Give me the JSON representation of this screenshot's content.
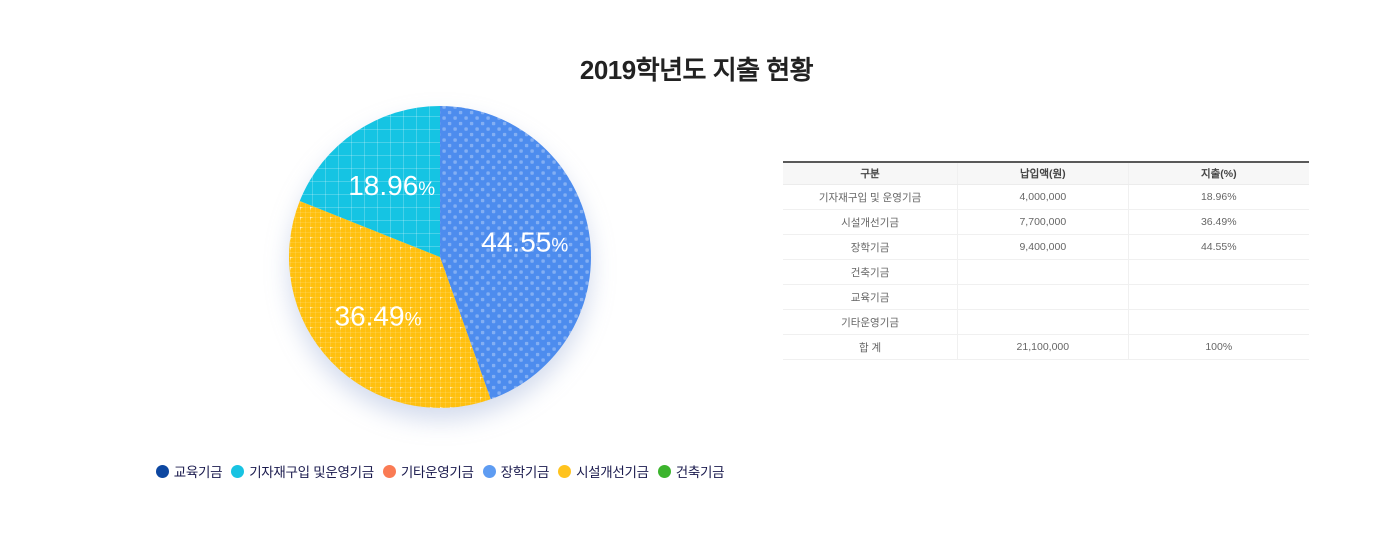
{
  "title": "2019학년도 지출 현황",
  "chart_data": {
    "type": "pie",
    "title": "2019학년도 지출 현황",
    "labels": [
      "장학기금",
      "시설개선기금",
      "기자재구입 및운영기금"
    ],
    "values": [
      44.55,
      36.49,
      18.96
    ],
    "display_values": [
      "44.55%",
      "36.49%",
      "18.96%"
    ],
    "colors": [
      "#4d8cee",
      "#ffc00e",
      "#15c4e3"
    ],
    "patterns": [
      "dots",
      "grid-fine",
      "grid"
    ],
    "start_angle_deg": 0,
    "direction": "clockwise",
    "label_color": "#ffffff",
    "legend_position": "bottom",
    "total": 100
  },
  "legend": {
    "items": [
      {
        "label": "교육기금",
        "color": "#0d47a1"
      },
      {
        "label": "기자재구입 및운영기금",
        "color": "#18c3e2"
      },
      {
        "label": "기타운영기금",
        "color": "#fa7b54"
      },
      {
        "label": "장학기금",
        "color": "#5e9cf2"
      },
      {
        "label": "시설개선기금",
        "color": "#ffc31e"
      },
      {
        "label": "건축기금",
        "color": "#3cb42d"
      }
    ]
  },
  "table": {
    "headers": [
      "구분",
      "납입액(원)",
      "지출(%)"
    ],
    "rows": [
      [
        "기자재구입 및 운영기금",
        "4,000,000",
        "18.96%"
      ],
      [
        "시설개선기금",
        "7,700,000",
        "36.49%"
      ],
      [
        "장학기금",
        "9,400,000",
        "44.55%"
      ],
      [
        "건축기금",
        "",
        ""
      ],
      [
        "교육기금",
        "",
        ""
      ],
      [
        "기타운영기금",
        "",
        ""
      ],
      [
        "합 계",
        "21,100,000",
        "100%"
      ]
    ]
  }
}
